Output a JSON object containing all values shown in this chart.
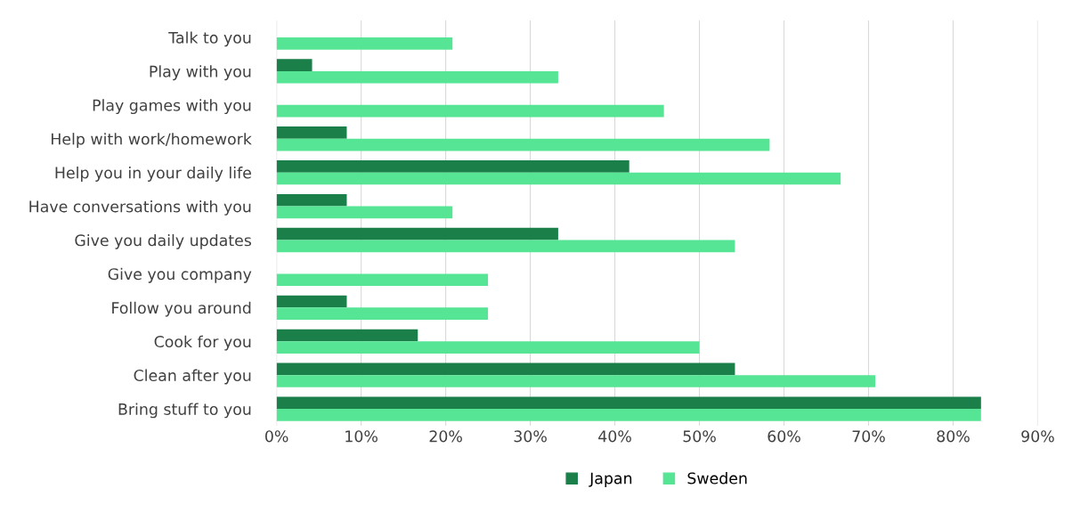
{
  "chart_data": {
    "type": "bar",
    "orientation": "horizontal",
    "categories": [
      "Talk to you",
      "Play with you",
      "Play games with you",
      "Help with work/homework",
      "Help you in your daily life",
      "Have conversations with you",
      "Give you daily updates",
      "Give you company",
      "Follow you around",
      "Cook for you",
      "Clean after you",
      "Bring stuff to you"
    ],
    "series": [
      {
        "name": "Japan",
        "color": "#1b7f4a",
        "values": [
          0,
          4.2,
          0,
          8.3,
          41.7,
          8.3,
          33.3,
          0,
          8.3,
          16.7,
          54.2,
          83.3
        ]
      },
      {
        "name": "Sweden",
        "color": "#55e594",
        "values": [
          20.8,
          33.3,
          45.8,
          58.3,
          66.7,
          20.8,
          54.2,
          25,
          25,
          50,
          70.8,
          83.3
        ]
      }
    ],
    "xlim": [
      0,
      90
    ],
    "xticks": [
      {
        "value": 0,
        "label": "0%"
      },
      {
        "value": 10,
        "label": "10%"
      },
      {
        "value": 20,
        "label": "20%"
      },
      {
        "value": 30,
        "label": "30%"
      },
      {
        "value": 40,
        "label": "40%"
      },
      {
        "value": 50,
        "label": "50%"
      },
      {
        "value": 60,
        "label": "60%"
      },
      {
        "value": 70,
        "label": "70%"
      },
      {
        "value": 80,
        "label": "80%"
      },
      {
        "value": 90,
        "label": "90%"
      }
    ],
    "grid": "x",
    "legend": "bottom"
  }
}
